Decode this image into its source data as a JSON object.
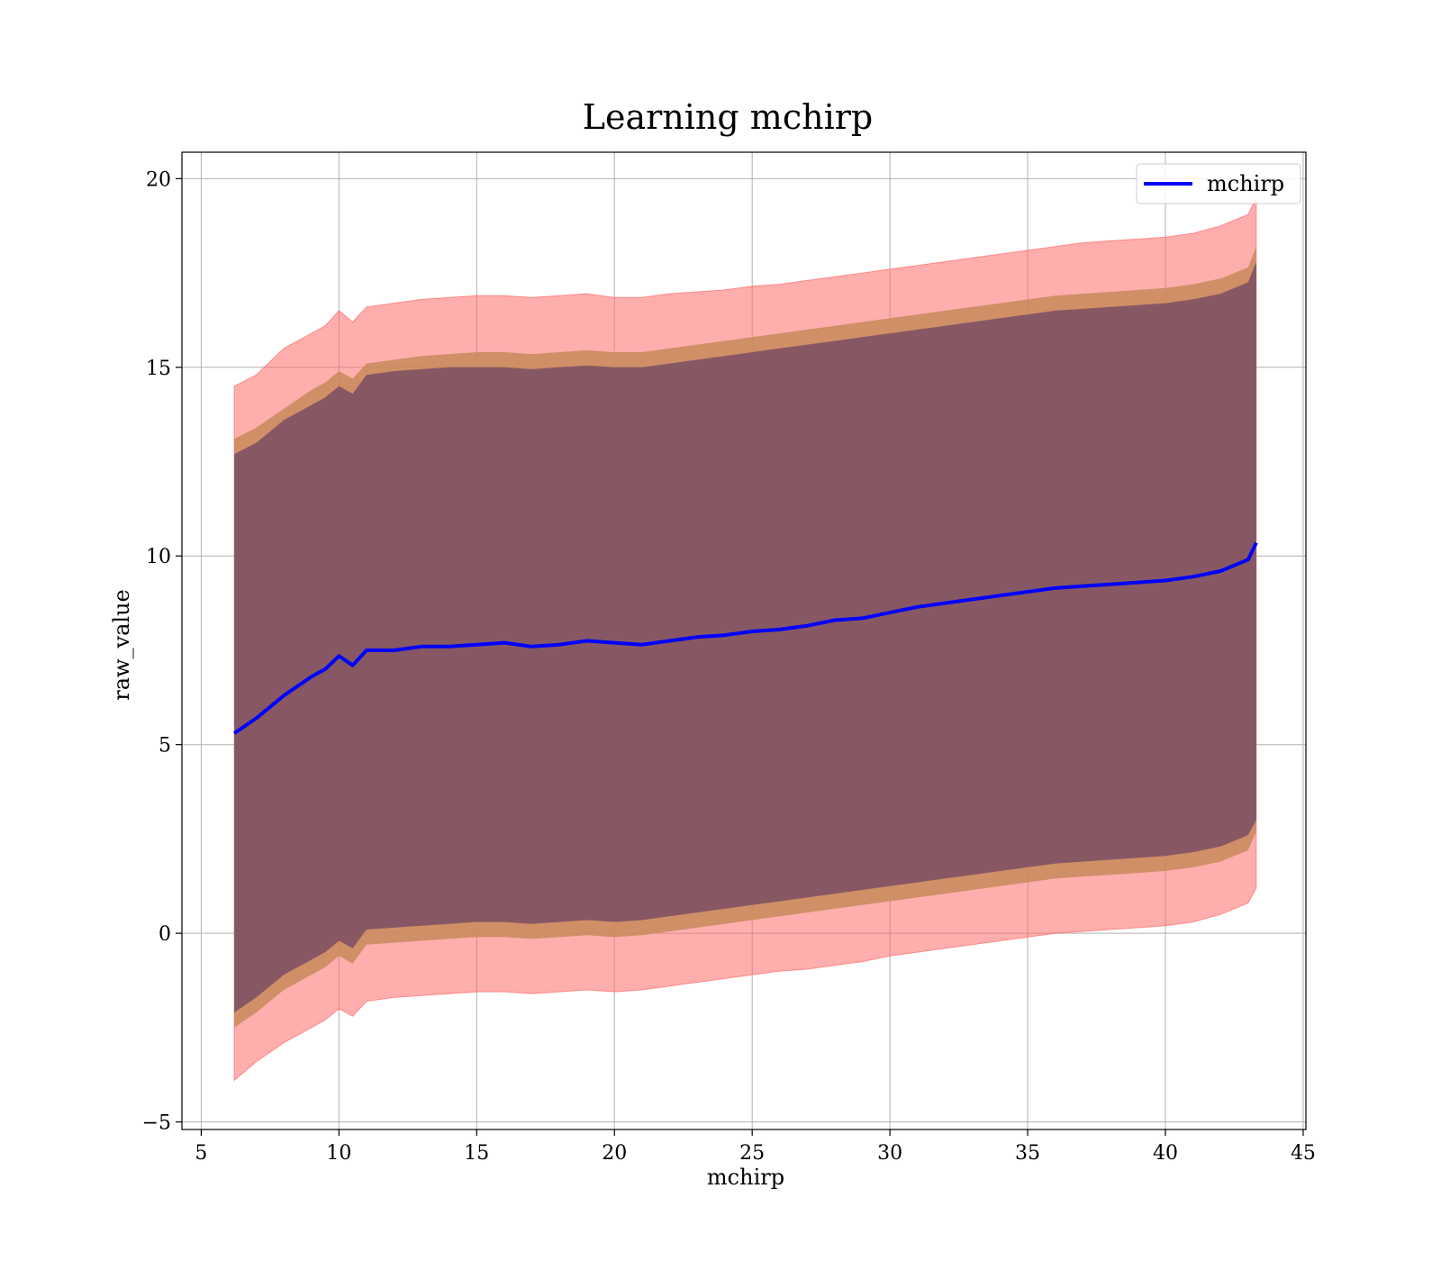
{
  "chart_data": {
    "type": "line",
    "title": "Learning mchirp",
    "xlabel": "mchirp",
    "ylabel": "raw_value",
    "xlim": [
      4.3,
      45.1
    ],
    "ylim": [
      -5.2,
      20.7
    ],
    "xticks": [
      5,
      10,
      15,
      20,
      25,
      30,
      35,
      40,
      45
    ],
    "yticks": [
      -5,
      0,
      5,
      10,
      15,
      20
    ],
    "xtick_labels": [
      "5",
      "10",
      "15",
      "20",
      "25",
      "30",
      "35",
      "40",
      "45"
    ],
    "ytick_labels": [
      "−5",
      "0",
      "5",
      "10",
      "15",
      "20"
    ],
    "grid": true,
    "legend": {
      "position": "top-right",
      "entries": [
        "mchirp"
      ]
    },
    "colors": {
      "line": "#0000ff",
      "band_outer": "#ff6b6b",
      "band_middle": "#c88a5a",
      "band_inner": "#7a4f63",
      "grid": "#b0b0b0"
    },
    "series": [
      {
        "name": "mchirp",
        "x": [
          6.2,
          7,
          8,
          9,
          9.5,
          10,
          10.5,
          11,
          12,
          13,
          14,
          15,
          16,
          17,
          18,
          19,
          20,
          21,
          22,
          23,
          24,
          25,
          26,
          27,
          28,
          29,
          30,
          31,
          32,
          33,
          34,
          35,
          36,
          37,
          38,
          39,
          40,
          41,
          42,
          42.5,
          43,
          43.3
        ],
        "mean": [
          5.3,
          5.7,
          6.3,
          6.8,
          7.0,
          7.35,
          7.1,
          7.5,
          7.5,
          7.6,
          7.6,
          7.65,
          7.7,
          7.6,
          7.65,
          7.75,
          7.7,
          7.65,
          7.75,
          7.85,
          7.9,
          8.0,
          8.05,
          8.15,
          8.3,
          8.35,
          8.5,
          8.65,
          8.75,
          8.85,
          8.95,
          9.05,
          9.15,
          9.2,
          9.25,
          9.3,
          9.35,
          9.45,
          9.6,
          9.75,
          9.9,
          10.35
        ],
        "outer_upper": [
          14.5,
          14.8,
          15.5,
          15.9,
          16.1,
          16.5,
          16.2,
          16.6,
          16.7,
          16.8,
          16.85,
          16.9,
          16.9,
          16.85,
          16.9,
          16.95,
          16.85,
          16.85,
          16.95,
          17.0,
          17.05,
          17.15,
          17.2,
          17.3,
          17.4,
          17.5,
          17.6,
          17.7,
          17.8,
          17.9,
          18.0,
          18.1,
          18.2,
          18.3,
          18.35,
          18.4,
          18.45,
          18.55,
          18.75,
          18.9,
          19.05,
          19.5
        ],
        "outer_lower": [
          -3.9,
          -3.4,
          -2.9,
          -2.5,
          -2.3,
          -2.0,
          -2.2,
          -1.8,
          -1.7,
          -1.65,
          -1.6,
          -1.55,
          -1.55,
          -1.6,
          -1.55,
          -1.5,
          -1.55,
          -1.5,
          -1.4,
          -1.3,
          -1.2,
          -1.1,
          -1.0,
          -0.95,
          -0.85,
          -0.75,
          -0.6,
          -0.5,
          -0.4,
          -0.3,
          -0.2,
          -0.1,
          0.0,
          0.05,
          0.1,
          0.15,
          0.2,
          0.3,
          0.5,
          0.65,
          0.8,
          1.2
        ],
        "middle_upper": [
          13.1,
          13.4,
          13.9,
          14.4,
          14.6,
          14.9,
          14.7,
          15.1,
          15.2,
          15.3,
          15.35,
          15.4,
          15.4,
          15.35,
          15.4,
          15.45,
          15.4,
          15.4,
          15.5,
          15.6,
          15.7,
          15.8,
          15.9,
          16.0,
          16.1,
          16.2,
          16.3,
          16.4,
          16.5,
          16.6,
          16.7,
          16.8,
          16.9,
          16.95,
          17.0,
          17.05,
          17.1,
          17.2,
          17.35,
          17.5,
          17.65,
          18.2
        ],
        "middle_lower": [
          -2.5,
          -2.1,
          -1.5,
          -1.1,
          -0.9,
          -0.6,
          -0.8,
          -0.3,
          -0.25,
          -0.2,
          -0.15,
          -0.1,
          -0.1,
          -0.15,
          -0.1,
          -0.05,
          -0.1,
          -0.05,
          0.05,
          0.15,
          0.25,
          0.35,
          0.45,
          0.55,
          0.65,
          0.75,
          0.85,
          0.95,
          1.05,
          1.15,
          1.25,
          1.35,
          1.45,
          1.5,
          1.55,
          1.6,
          1.65,
          1.75,
          1.9,
          2.05,
          2.2,
          2.7
        ],
        "inner_upper": [
          12.7,
          13.0,
          13.6,
          14.0,
          14.2,
          14.5,
          14.3,
          14.8,
          14.9,
          14.95,
          15.0,
          15.0,
          15.0,
          14.95,
          15.0,
          15.05,
          15.0,
          15.0,
          15.1,
          15.2,
          15.3,
          15.4,
          15.5,
          15.6,
          15.7,
          15.8,
          15.9,
          16.0,
          16.1,
          16.2,
          16.3,
          16.4,
          16.5,
          16.55,
          16.6,
          16.65,
          16.7,
          16.8,
          16.95,
          17.1,
          17.25,
          17.8
        ],
        "inner_lower": [
          -2.1,
          -1.7,
          -1.1,
          -0.7,
          -0.5,
          -0.2,
          -0.4,
          0.1,
          0.15,
          0.2,
          0.25,
          0.3,
          0.3,
          0.25,
          0.3,
          0.35,
          0.3,
          0.35,
          0.45,
          0.55,
          0.65,
          0.75,
          0.85,
          0.95,
          1.05,
          1.15,
          1.25,
          1.35,
          1.45,
          1.55,
          1.65,
          1.75,
          1.85,
          1.9,
          1.95,
          2.0,
          2.05,
          2.15,
          2.3,
          2.45,
          2.6,
          3.0
        ]
      }
    ]
  }
}
